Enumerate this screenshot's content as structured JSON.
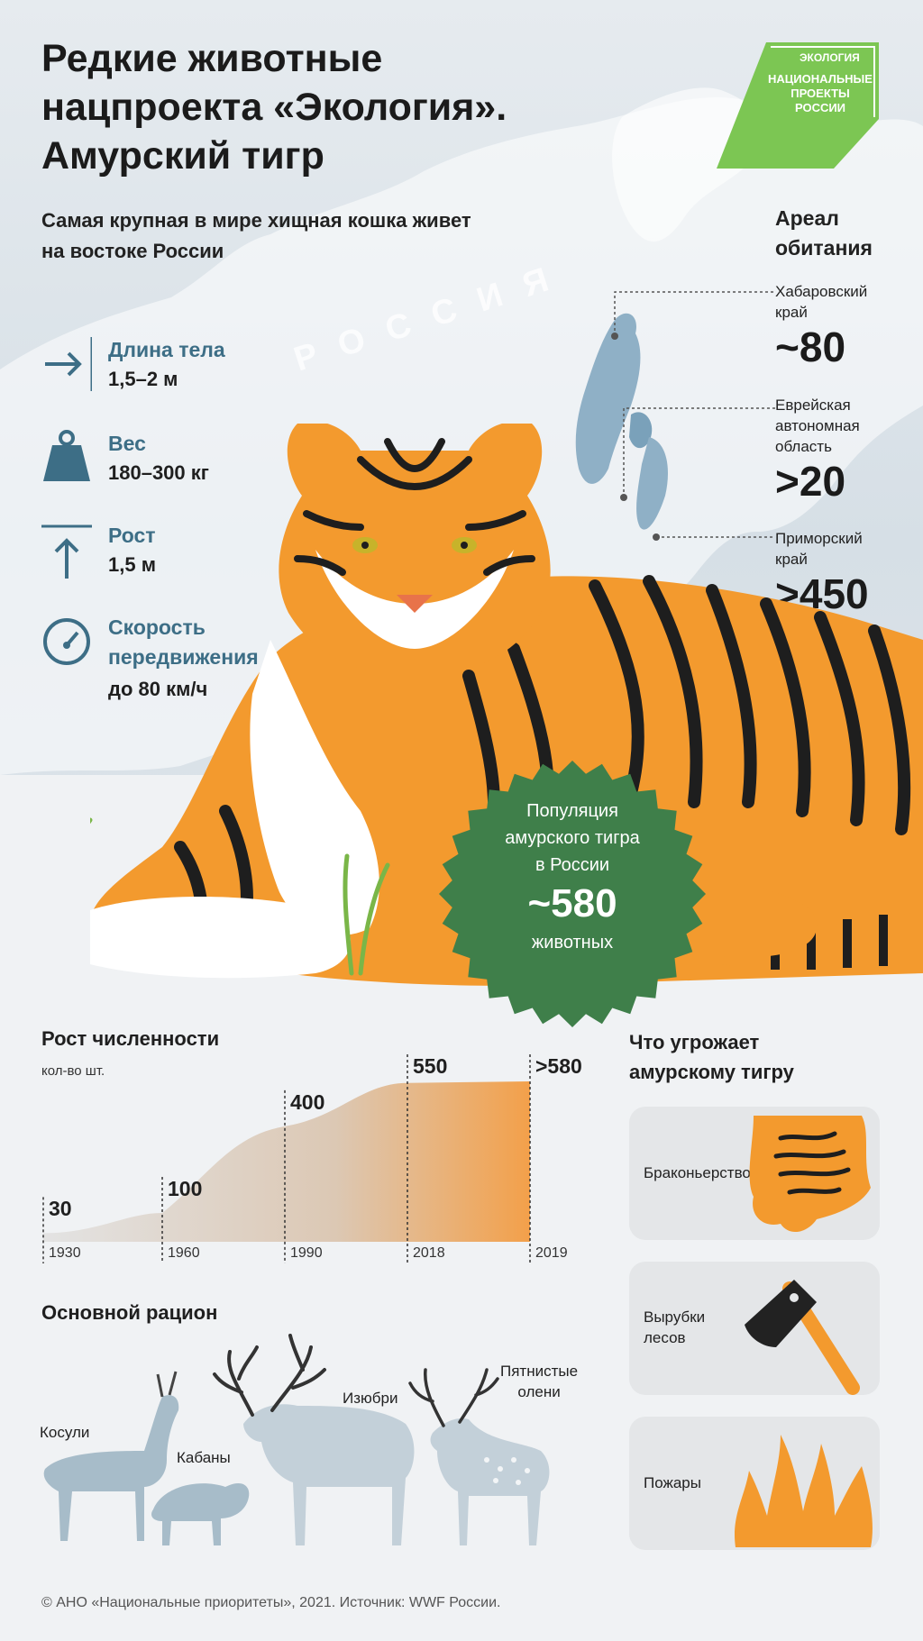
{
  "header": {
    "title_line1": "Редкие животные",
    "title_line2": "нацпроекта «Экология».",
    "title_line3": "Амурский тигр",
    "subtitle_line1": "Самая крупная в мире хищная кошка живет",
    "subtitle_line2": "на востоке России"
  },
  "logo": {
    "top": "ЭКОЛОГИЯ",
    "line1": "НАЦИОНАЛЬНЫЕ",
    "line2": "ПРОЕКТЫ",
    "line3": "РОССИИ",
    "color": "#7cc653"
  },
  "map": {
    "label": "РОССИЯ"
  },
  "stats": [
    {
      "label": "Длина тела",
      "value": "1,5–2 м",
      "icon": "arrow-right-icon"
    },
    {
      "label": "Вес",
      "value": "180–300 кг",
      "icon": "weight-icon"
    },
    {
      "label": "Рост",
      "value": "1,5 м",
      "icon": "arrow-up-icon"
    },
    {
      "label": "Скорость",
      "label2": "передвижения",
      "value": "до 80 км/ч",
      "icon": "speedometer-icon"
    }
  ],
  "habitat": {
    "title_line1": "Ареал",
    "title_line2": "обитания",
    "regions": [
      {
        "name_lines": [
          "Хабаровский",
          "край"
        ],
        "value": "~80"
      },
      {
        "name_lines": [
          "Еврейская",
          "автономная",
          "область"
        ],
        "value": ">20"
      },
      {
        "name_lines": [
          "Приморский",
          "край"
        ],
        "value": ">450"
      }
    ]
  },
  "population": {
    "line1": "Популяция",
    "line2": "амурского тигра",
    "line3": "в России",
    "value": "~580",
    "unit": "животных",
    "color": "#3f7f4a"
  },
  "growth": {
    "title": "Рост численности",
    "unit_label": "кол-во шт."
  },
  "chart_data": {
    "type": "area",
    "title": "Рост численности",
    "ylabel": "кол-во шт.",
    "x": [
      "1930",
      "1960",
      "1990",
      "2018",
      "2019"
    ],
    "value_labels": [
      "30",
      "100",
      "400",
      "550",
      ">580"
    ],
    "values": [
      30,
      100,
      400,
      550,
      580
    ]
  },
  "threats": {
    "title_line1": "Что угрожает",
    "title_line2": "амурскому тигру",
    "items": [
      {
        "label_lines": [
          "Браконьерство"
        ],
        "icon": "tiger-skin-icon"
      },
      {
        "label_lines": [
          "Вырубки",
          "лесов"
        ],
        "icon": "axe-icon"
      },
      {
        "label_lines": [
          "Пожары"
        ],
        "icon": "fire-icon"
      }
    ]
  },
  "diet": {
    "title": "Основной рацион",
    "animals": [
      {
        "label_lines": [
          "Косули"
        ]
      },
      {
        "label_lines": [
          "Кабаны"
        ]
      },
      {
        "label_lines": [
          "Изюбри"
        ]
      },
      {
        "label_lines": [
          "Пятнистые",
          "олени"
        ]
      }
    ]
  },
  "footer": {
    "text": "© АНО «Национальные приоритеты», 2021. Источник: WWF России."
  },
  "colors": {
    "accent_blue": "#3d6e86",
    "map_blue": "#8fb0c6",
    "tiger_orange": "#f39a2e",
    "badge_green": "#3f7f4a"
  }
}
